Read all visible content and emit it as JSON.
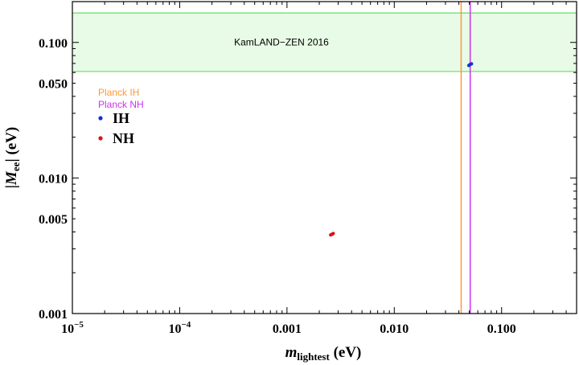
{
  "chart_data": {
    "type": "scatter",
    "x_scale": "log",
    "y_scale": "log",
    "xlim": [
      1e-05,
      0.5
    ],
    "ylim": [
      0.001,
      0.2
    ],
    "xlabel": {
      "main": "m",
      "sub": "lightest",
      "unit": " (eV)"
    },
    "ylabel": {
      "pre": "|",
      "main": "M",
      "sub": "ee",
      "post": "| (eV)"
    },
    "x_ticks": [
      {
        "value": 1e-05,
        "base": "10",
        "exp": "−5"
      },
      {
        "value": 0.0001,
        "base": "10",
        "exp": "−4"
      },
      {
        "value": 0.001,
        "label": "0.001"
      },
      {
        "value": 0.01,
        "label": "0.010"
      },
      {
        "value": 0.1,
        "label": "0.100"
      }
    ],
    "y_ticks": [
      {
        "value": 0.001,
        "label": "0.001"
      },
      {
        "value": 0.005,
        "label": "0.005"
      },
      {
        "value": 0.01,
        "label": "0.010"
      },
      {
        "value": 0.05,
        "label": "0.050"
      },
      {
        "value": 0.1,
        "label": "0.100"
      }
    ],
    "band": {
      "label": "KamLAND−ZEN 2016",
      "y_range": [
        0.061,
        0.165
      ],
      "fill": "#e8fbe6",
      "edge": "#66dd66"
    },
    "vlines": [
      {
        "name": "Planck IH",
        "x": 0.042,
        "color": "#ff9933"
      },
      {
        "name": "Planck NH",
        "x": 0.051,
        "color": "#cc33ee"
      }
    ],
    "series": [
      {
        "name": "IH",
        "color": "#1133cc",
        "points": [
          [
            0.0495,
            0.0675
          ],
          [
            0.0505,
            0.0685
          ],
          [
            0.0515,
            0.069
          ],
          [
            0.0525,
            0.0695
          ]
        ]
      },
      {
        "name": "NH",
        "color": "#dd1111",
        "points": [
          [
            0.00255,
            0.0038
          ],
          [
            0.0026,
            0.00383
          ],
          [
            0.00265,
            0.00386
          ],
          [
            0.0027,
            0.0039
          ]
        ]
      }
    ],
    "legend_placement": "top-left",
    "grid": false
  }
}
